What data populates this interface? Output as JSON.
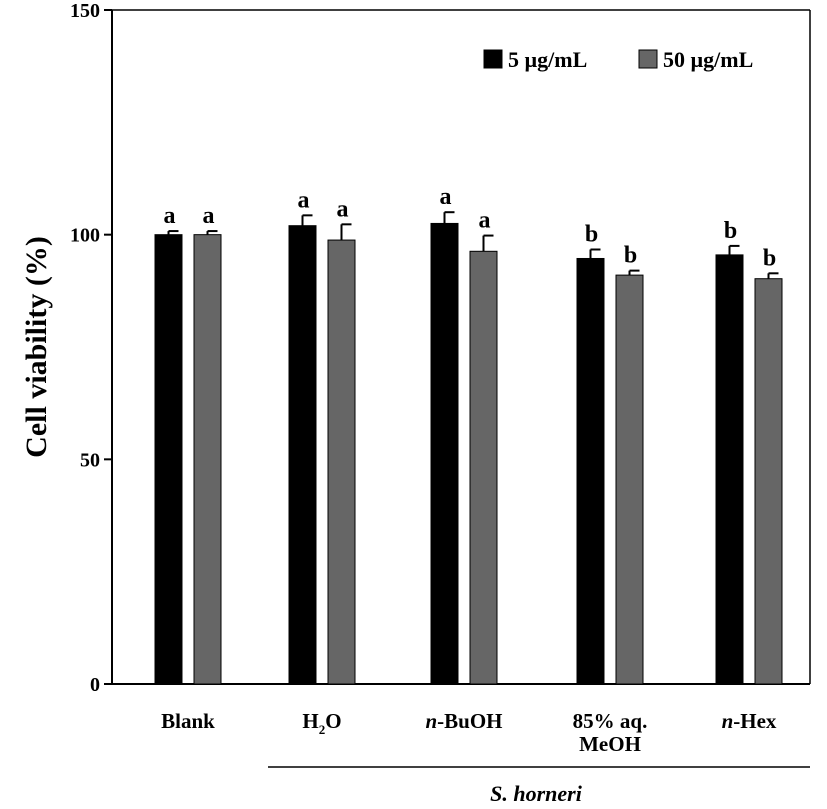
{
  "chart_data": {
    "type": "bar",
    "title": "",
    "xlabel": "",
    "ylabel": "Cell viability (%)",
    "ylim": [
      0,
      150
    ],
    "yticks": [
      0,
      50,
      100,
      150
    ],
    "grid": false,
    "legend_position": "top-right",
    "categories": [
      {
        "label": "Blank"
      },
      {
        "label": "H",
        "sub": "2",
        "suffix": "O"
      },
      {
        "italic_prefix": "n",
        "label": "-BuOH"
      },
      {
        "label": "85% aq.",
        "label2": "MeOH"
      },
      {
        "italic_prefix": "n",
        "label": "-Hex"
      }
    ],
    "group_label": "S. horneri",
    "series": [
      {
        "name": "5 µg/mL",
        "color": "#000000",
        "values": [
          100.0,
          102.0,
          102.5,
          94.7,
          95.5
        ],
        "errors": [
          0.8,
          2.3,
          2.5,
          2.0,
          2.0
        ],
        "letters": [
          "a",
          "a",
          "a",
          "b",
          "b"
        ]
      },
      {
        "name": "50 µg/mL",
        "color": "#666666",
        "values": [
          100.0,
          98.8,
          96.3,
          91.0,
          90.2
        ],
        "errors": [
          0.8,
          3.5,
          3.5,
          1.0,
          1.2
        ],
        "letters": [
          "a",
          "a",
          "a",
          "b",
          "b"
        ]
      }
    ]
  }
}
